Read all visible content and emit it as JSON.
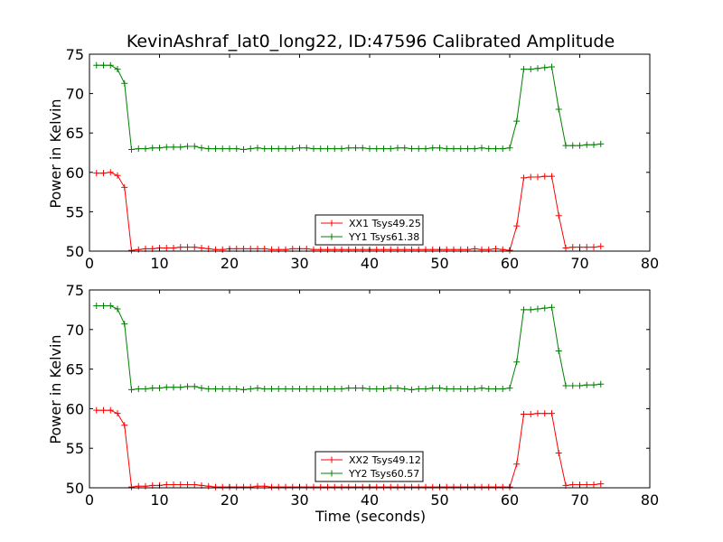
{
  "title": "KevinAshraf_lat0_long22, ID:47596 Calibrated Amplitude",
  "xlabel": "Time (seconds)",
  "ylabel": "Power in Kelvin",
  "chart_data": [
    {
      "type": "line",
      "title": "KevinAshraf_lat0_long22, ID:47596 Calibrated Amplitude",
      "xlabel": "",
      "ylabel": "Power in Kelvin",
      "xlim": [
        0,
        80
      ],
      "ylim": [
        50,
        75
      ],
      "xticks": [
        0,
        10,
        20,
        30,
        40,
        50,
        60,
        70,
        80
      ],
      "yticks": [
        50,
        55,
        60,
        65,
        70,
        75
      ],
      "grid": false,
      "legend": "bottom-center",
      "x": [
        1,
        2,
        3,
        4,
        5,
        6,
        7,
        8,
        9,
        10,
        11,
        12,
        13,
        14,
        15,
        16,
        17,
        18,
        19,
        20,
        21,
        22,
        23,
        24,
        25,
        26,
        27,
        28,
        29,
        30,
        31,
        32,
        33,
        34,
        35,
        36,
        37,
        38,
        39,
        40,
        41,
        42,
        43,
        44,
        45,
        46,
        47,
        48,
        49,
        50,
        51,
        52,
        53,
        54,
        55,
        56,
        57,
        58,
        59,
        60,
        61,
        62,
        63,
        64,
        65,
        66,
        67,
        68,
        69,
        70,
        71,
        72,
        73
      ],
      "series": [
        {
          "name": "XX1 Tsys49.25",
          "color": "#ff0000",
          "values": [
            59.9,
            59.9,
            60.0,
            59.6,
            58.1,
            50.1,
            50.2,
            50.3,
            50.3,
            50.4,
            50.4,
            50.4,
            50.5,
            50.5,
            50.5,
            50.4,
            50.3,
            50.2,
            50.2,
            50.3,
            50.3,
            50.3,
            50.3,
            50.3,
            50.3,
            50.2,
            50.2,
            50.2,
            50.3,
            50.3,
            50.3,
            50.2,
            50.2,
            50.2,
            50.2,
            50.2,
            50.2,
            50.2,
            50.2,
            50.2,
            50.2,
            50.2,
            50.2,
            50.2,
            50.2,
            50.2,
            50.2,
            50.2,
            50.2,
            50.2,
            50.2,
            50.2,
            50.2,
            50.2,
            50.3,
            50.2,
            50.2,
            50.3,
            50.2,
            50.1,
            53.2,
            59.3,
            59.4,
            59.4,
            59.5,
            59.5,
            54.5,
            50.4,
            50.5,
            50.5,
            50.5,
            50.5,
            50.6
          ]
        },
        {
          "name": "YY1 Tsys61.38",
          "color": "#008000",
          "values": [
            73.6,
            73.6,
            73.6,
            73.1,
            71.3,
            62.9,
            63.0,
            63.0,
            63.1,
            63.1,
            63.2,
            63.2,
            63.2,
            63.3,
            63.3,
            63.1,
            63.0,
            63.0,
            63.0,
            63.0,
            63.0,
            62.9,
            63.0,
            63.1,
            63.0,
            63.0,
            63.0,
            63.0,
            63.0,
            63.1,
            63.1,
            63.0,
            63.0,
            63.0,
            63.0,
            63.0,
            63.1,
            63.1,
            63.1,
            63.0,
            63.0,
            63.0,
            63.0,
            63.1,
            63.1,
            63.0,
            63.0,
            63.0,
            63.1,
            63.1,
            63.0,
            63.0,
            63.0,
            63.0,
            63.0,
            63.1,
            63.0,
            63.0,
            63.0,
            63.1,
            66.5,
            73.1,
            73.1,
            73.2,
            73.3,
            73.4,
            68.0,
            63.4,
            63.4,
            63.4,
            63.5,
            63.5,
            63.6
          ]
        }
      ]
    },
    {
      "type": "line",
      "title": "",
      "xlabel": "Time (seconds)",
      "ylabel": "Power in Kelvin",
      "xlim": [
        0,
        80
      ],
      "ylim": [
        50,
        75
      ],
      "xticks": [
        0,
        10,
        20,
        30,
        40,
        50,
        60,
        70,
        80
      ],
      "yticks": [
        50,
        55,
        60,
        65,
        70,
        75
      ],
      "grid": false,
      "legend": "bottom-center",
      "x": [
        1,
        2,
        3,
        4,
        5,
        6,
        7,
        8,
        9,
        10,
        11,
        12,
        13,
        14,
        15,
        16,
        17,
        18,
        19,
        20,
        21,
        22,
        23,
        24,
        25,
        26,
        27,
        28,
        29,
        30,
        31,
        32,
        33,
        34,
        35,
        36,
        37,
        38,
        39,
        40,
        41,
        42,
        43,
        44,
        45,
        46,
        47,
        48,
        49,
        50,
        51,
        52,
        53,
        54,
        55,
        56,
        57,
        58,
        59,
        60,
        61,
        62,
        63,
        64,
        65,
        66,
        67,
        68,
        69,
        70,
        71,
        72,
        73
      ],
      "series": [
        {
          "name": "XX2 Tsys49.12",
          "color": "#ff0000",
          "values": [
            59.8,
            59.8,
            59.8,
            59.4,
            57.9,
            50.1,
            50.2,
            50.2,
            50.3,
            50.3,
            50.4,
            50.4,
            50.4,
            50.4,
            50.4,
            50.3,
            50.2,
            50.1,
            50.1,
            50.1,
            50.1,
            50.1,
            50.1,
            50.2,
            50.2,
            50.1,
            50.1,
            50.1,
            50.1,
            50.1,
            50.1,
            50.1,
            50.1,
            50.1,
            50.1,
            50.1,
            50.1,
            50.1,
            50.1,
            50.1,
            50.1,
            50.1,
            50.1,
            50.1,
            50.1,
            50.1,
            50.1,
            50.1,
            50.1,
            50.1,
            50.1,
            50.1,
            50.1,
            50.1,
            50.1,
            50.1,
            50.1,
            50.1,
            50.1,
            50.1,
            53.0,
            59.3,
            59.3,
            59.4,
            59.4,
            59.4,
            54.4,
            50.3,
            50.4,
            50.4,
            50.4,
            50.4,
            50.5
          ]
        },
        {
          "name": "YY2 Tsys60.57",
          "color": "#008000",
          "values": [
            73.0,
            73.0,
            73.0,
            72.6,
            70.7,
            62.4,
            62.5,
            62.5,
            62.6,
            62.6,
            62.7,
            62.7,
            62.7,
            62.8,
            62.8,
            62.6,
            62.5,
            62.5,
            62.5,
            62.5,
            62.5,
            62.4,
            62.5,
            62.6,
            62.5,
            62.5,
            62.5,
            62.5,
            62.5,
            62.5,
            62.5,
            62.5,
            62.5,
            62.5,
            62.5,
            62.5,
            62.6,
            62.6,
            62.6,
            62.5,
            62.5,
            62.5,
            62.6,
            62.6,
            62.5,
            62.4,
            62.5,
            62.5,
            62.6,
            62.6,
            62.5,
            62.5,
            62.5,
            62.5,
            62.5,
            62.6,
            62.5,
            62.5,
            62.5,
            62.6,
            65.9,
            72.5,
            72.5,
            72.6,
            72.7,
            72.8,
            67.3,
            62.9,
            62.9,
            62.9,
            63.0,
            63.0,
            63.1
          ]
        }
      ]
    }
  ]
}
